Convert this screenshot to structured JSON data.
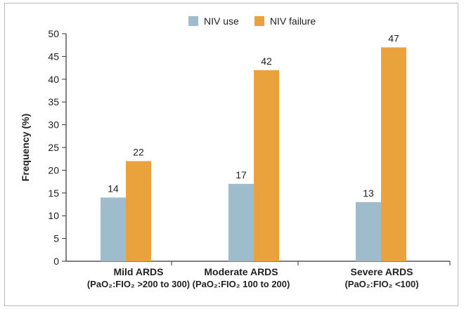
{
  "chart_data": {
    "type": "bar",
    "ylabel": "Frequency (%)",
    "ylim": [
      0,
      50
    ],
    "yticks": [
      0,
      5,
      10,
      15,
      20,
      25,
      30,
      35,
      40,
      45,
      50
    ],
    "grid": false,
    "legend_position": "top-center",
    "categories": [
      {
        "name": "Mild ARDS",
        "sub": "(PaO₂:FIO₂ >200 to 300)"
      },
      {
        "name": "Moderate ARDS",
        "sub": "(PaO₂:FIO₂ 100 to 200)"
      },
      {
        "name": "Severe ARDS",
        "sub": "(PaO₂:FIO₂ <100)"
      }
    ],
    "series": [
      {
        "name": "NIV use",
        "color": "#9fbccd",
        "values": [
          14,
          17,
          13
        ]
      },
      {
        "name": "NIV failure",
        "color": "#e9a23c",
        "values": [
          22,
          42,
          47
        ]
      }
    ]
  }
}
